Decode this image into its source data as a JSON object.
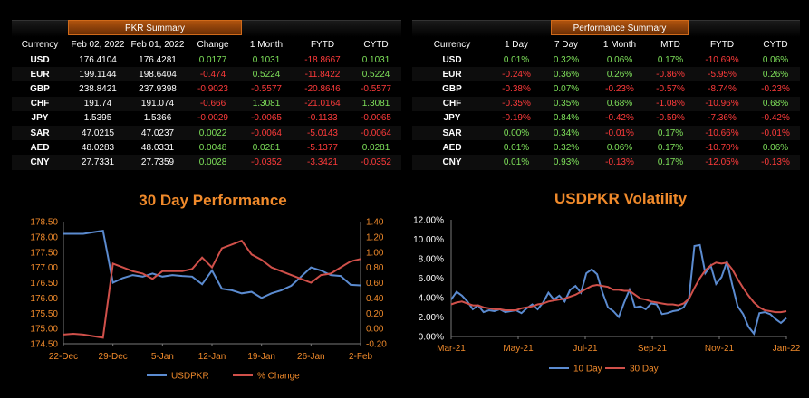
{
  "pkr_summary": {
    "title": "PKR Summary",
    "headers": [
      "Currency",
      "Feb 02, 2022",
      "Feb 01, 2022",
      "Change",
      "1 Month",
      "FYTD",
      "CYTD"
    ],
    "rows": [
      [
        "USD",
        "176.4104",
        "176.4281",
        "0.0177",
        "0.1031",
        "-18.8667",
        "0.1031"
      ],
      [
        "EUR",
        "199.1144",
        "198.6404",
        "-0.474",
        "0.5224",
        "-11.8422",
        "0.5224"
      ],
      [
        "GBP",
        "238.8421",
        "237.9398",
        "-0.9023",
        "-0.5577",
        "-20.8646",
        "-0.5577"
      ],
      [
        "CHF",
        "191.74",
        "191.074",
        "-0.666",
        "1.3081",
        "-21.0164",
        "1.3081"
      ],
      [
        "JPY",
        "1.5395",
        "1.5366",
        "-0.0029",
        "-0.0065",
        "-0.1133",
        "-0.0065"
      ],
      [
        "SAR",
        "47.0215",
        "47.0237",
        "0.0022",
        "-0.0064",
        "-5.0143",
        "-0.0064"
      ],
      [
        "AED",
        "48.0283",
        "48.0331",
        "0.0048",
        "0.0281",
        "-5.1377",
        "0.0281"
      ],
      [
        "CNY",
        "27.7331",
        "27.7359",
        "0.0028",
        "-0.0352",
        "-3.3421",
        "-0.0352"
      ]
    ]
  },
  "performance_summary": {
    "title": "Performance Summary",
    "headers": [
      "Currency",
      "1 Day",
      "7 Day",
      "1 Month",
      "MTD",
      "FYTD",
      "CYTD"
    ],
    "rows": [
      [
        "USD",
        "0.01%",
        "0.32%",
        "0.06%",
        "0.17%",
        "-10.69%",
        "0.06%"
      ],
      [
        "EUR",
        "-0.24%",
        "0.36%",
        "0.26%",
        "-0.86%",
        "-5.95%",
        "0.26%"
      ],
      [
        "GBP",
        "-0.38%",
        "0.07%",
        "-0.23%",
        "-0.57%",
        "-8.74%",
        "-0.23%"
      ],
      [
        "CHF",
        "-0.35%",
        "0.35%",
        "0.68%",
        "-1.08%",
        "-10.96%",
        "0.68%"
      ],
      [
        "JPY",
        "-0.19%",
        "0.84%",
        "-0.42%",
        "-0.59%",
        "-7.36%",
        "-0.42%"
      ],
      [
        "SAR",
        "0.00%",
        "0.34%",
        "-0.01%",
        "0.17%",
        "-10.66%",
        "-0.01%"
      ],
      [
        "AED",
        "0.01%",
        "0.32%",
        "0.06%",
        "0.17%",
        "-10.70%",
        "0.06%"
      ],
      [
        "CNY",
        "0.01%",
        "0.93%",
        "-0.13%",
        "0.17%",
        "-12.05%",
        "-0.13%"
      ]
    ]
  },
  "colors": {
    "accent": "#f08a2b",
    "positive": "#7ee05a",
    "negative": "#ff3b3b",
    "series_blue": "#5b8bd0",
    "series_red": "#d0504a"
  },
  "chart_data": [
    {
      "type": "line",
      "title": "30 Day Performance",
      "x_tick_labels": [
        "22-Dec",
        "29-Dec",
        "5-Jan",
        "12-Jan",
        "19-Jan",
        "26-Jan",
        "2-Feb"
      ],
      "x_dates": [
        "22-Dec",
        "23-Dec",
        "24-Dec",
        "27-Dec",
        "28-Dec",
        "29-Dec",
        "30-Dec",
        "31-Dec",
        "3-Jan",
        "4-Jan",
        "5-Jan",
        "6-Jan",
        "7-Jan",
        "10-Jan",
        "11-Jan",
        "12-Jan",
        "13-Jan",
        "14-Jan",
        "17-Jan",
        "18-Jan",
        "19-Jan",
        "20-Jan",
        "21-Jan",
        "24-Jan",
        "25-Jan",
        "26-Jan",
        "27-Jan",
        "28-Jan",
        "31-Jan",
        "1-Feb",
        "2-Feb"
      ],
      "y_left_ticks": [
        "174.50",
        "175.00",
        "175.50",
        "176.00",
        "176.50",
        "177.00",
        "177.50",
        "178.00",
        "178.50"
      ],
      "y_left_range": [
        174.5,
        178.5
      ],
      "y_right_ticks": [
        "-0.20",
        "0.00",
        "0.20",
        "0.40",
        "0.60",
        "0.80",
        "1.00",
        "1.20",
        "1.40"
      ],
      "y_right_range": [
        -0.2,
        1.4
      ],
      "series": [
        {
          "name": "USDPKR",
          "axis": "left",
          "values": [
            178.1,
            178.1,
            178.1,
            178.15,
            178.2,
            176.5,
            176.65,
            176.75,
            176.7,
            176.8,
            176.7,
            176.75,
            176.72,
            176.7,
            176.45,
            176.9,
            176.3,
            176.25,
            176.15,
            176.2,
            176.0,
            176.15,
            176.25,
            176.4,
            176.7,
            177.0,
            176.9,
            176.75,
            176.72,
            176.43,
            176.41
          ]
        },
        {
          "name": "% Change",
          "axis": "right",
          "values": [
            -0.08,
            -0.07,
            -0.08,
            -0.1,
            -0.12,
            0.85,
            0.8,
            0.75,
            0.72,
            0.65,
            0.75,
            0.75,
            0.75,
            0.78,
            0.93,
            0.8,
            1.05,
            1.1,
            1.15,
            0.97,
            0.9,
            0.8,
            0.75,
            0.7,
            0.65,
            0.6,
            0.7,
            0.72,
            0.8,
            0.88,
            0.91
          ]
        }
      ],
      "legend_position": "bottom"
    },
    {
      "type": "line",
      "title": "USDPKR Volatility",
      "x_tick_labels": [
        "Mar-21",
        "May-21",
        "Jul-21",
        "Sep-21",
        "Nov-21",
        "Jan-22"
      ],
      "y_ticks": [
        "0.00%",
        "2.00%",
        "4.00%",
        "6.00%",
        "8.00%",
        "10.00%",
        "12.00%"
      ],
      "y_range": [
        0,
        12
      ],
      "series": [
        {
          "name": "10 Day",
          "values": [
            3.8,
            4.6,
            4.2,
            3.6,
            2.8,
            3.2,
            2.5,
            2.7,
            2.6,
            2.8,
            2.5,
            2.6,
            2.7,
            2.4,
            2.9,
            3.3,
            2.8,
            3.5,
            4.5,
            3.8,
            4.2,
            3.6,
            4.8,
            5.2,
            4.5,
            6.5,
            6.9,
            6.4,
            4.5,
            3.0,
            2.6,
            2.0,
            3.5,
            4.8,
            3.0,
            3.1,
            2.8,
            3.4,
            3.3,
            2.3,
            2.4,
            2.6,
            2.7,
            3.0,
            4.0,
            9.3,
            9.4,
            6.5,
            7.3,
            5.4,
            6.1,
            7.7,
            5.3,
            3.1,
            2.3,
            1.0,
            0.3,
            2.4,
            2.5,
            2.3,
            1.8,
            1.4,
            1.9
          ]
        },
        {
          "name": "30 Day",
          "values": [
            3.3,
            3.5,
            3.6,
            3.4,
            3.2,
            3.2,
            3.0,
            2.9,
            2.8,
            2.8,
            2.7,
            2.7,
            2.7,
            2.9,
            3.0,
            3.1,
            3.3,
            3.4,
            3.6,
            3.7,
            3.8,
            3.9,
            4.1,
            4.3,
            4.6,
            4.9,
            5.2,
            5.3,
            5.2,
            5.1,
            4.8,
            4.8,
            4.7,
            4.7,
            4.3,
            3.9,
            3.8,
            3.6,
            3.5,
            3.4,
            3.3,
            3.3,
            3.2,
            3.4,
            3.9,
            5.0,
            6.0,
            6.8,
            7.3,
            7.6,
            7.5,
            7.6,
            6.9,
            5.9,
            5.0,
            4.2,
            3.5,
            3.0,
            2.7,
            2.6,
            2.5,
            2.5,
            2.6
          ]
        }
      ],
      "legend_position": "bottom"
    }
  ]
}
